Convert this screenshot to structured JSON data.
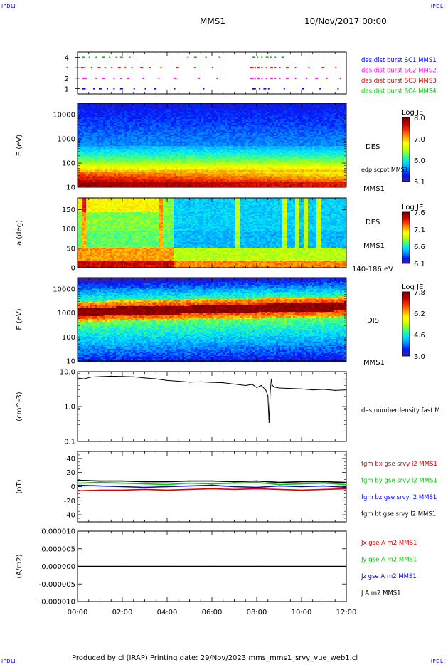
{
  "corners": {
    "tl": "IPDLI",
    "tr": "IPDLI",
    "bl": "IPDLI",
    "br": "IPDLI"
  },
  "header": {
    "title": "MMS1",
    "date": "10/Nov/2017 00:00"
  },
  "footer": {
    "text": "Produced by cl (IRAP)   Printing date: 29/Nov/2023   mms_mms1_srvy_vue_web1.cl"
  },
  "time_axis": {
    "start_hour": 0,
    "end_hour": 12,
    "ticks": [
      "00:00",
      "02:00",
      "04:00",
      "06:00",
      "08:00",
      "10:00",
      "12:00"
    ]
  },
  "colorbar_gradient": [
    "#3d1f99",
    "#0018ff",
    "#0090ff",
    "#00e0ff",
    "#40ff80",
    "#c0ff00",
    "#ffff00",
    "#ffa000",
    "#ff3000",
    "#c00000",
    "#7a0000"
  ],
  "chart_data": [
    {
      "type": "scatter",
      "name": "burst-panel",
      "ylim": [
        0.5,
        4.5
      ],
      "yticks": [
        "1",
        "2",
        "3",
        "4"
      ],
      "legend": [
        {
          "label": "des dist burst SC1 MMS1",
          "color": "#0000ff"
        },
        {
          "label": "des dist burst SC2 MMS2",
          "color": "#ff00ff"
        },
        {
          "label": "des dist burst SC3 MMS3",
          "color": "#dd0000"
        },
        {
          "label": "des dist burst SC4 MMS4",
          "color": "#00cc00"
        }
      ],
      "series": [
        {
          "y": 1,
          "color": "#0000ff",
          "x": [
            0.2,
            0.3,
            0.7,
            0.95,
            1.3,
            1.6,
            1.9,
            2.5,
            3.0,
            3.4,
            4.3,
            5.6,
            7.8,
            7.9,
            8.1,
            8.3,
            8.5,
            9.2,
            10.0,
            10.8,
            11.6
          ]
        },
        {
          "y": 2,
          "color": "#ff00ff",
          "x": [
            0.2,
            0.35,
            0.8,
            1.1,
            1.6,
            1.9,
            2.2,
            2.9,
            3.6,
            4.3,
            5.4,
            6.2,
            7.7,
            7.8,
            7.9,
            8.0,
            8.2,
            8.4,
            8.6,
            8.8,
            9.0,
            9.3,
            9.7,
            10.2,
            10.6,
            11.1,
            11.7
          ]
        },
        {
          "y": 3,
          "color": "#dd0000",
          "x": [
            0.15,
            0.3,
            0.6,
            0.9,
            1.2,
            1.5,
            1.8,
            2.1,
            2.4,
            2.8,
            3.2,
            3.7,
            4.4,
            5.2,
            6.0,
            7.7,
            7.8,
            7.9,
            8.0,
            8.2,
            8.4,
            8.6,
            8.8,
            9.0,
            9.3,
            9.7,
            10.3,
            10.9,
            11.5
          ]
        },
        {
          "y": 4,
          "color": "#00cc00",
          "x": [
            0.2,
            0.5,
            0.8,
            1.1,
            1.4,
            1.7,
            1.9,
            2.3,
            4.9,
            5.2,
            5.7,
            6.3,
            7.8,
            8.0,
            8.2,
            8.4,
            8.6,
            8.8,
            9.1
          ]
        }
      ]
    },
    {
      "type": "heatmap",
      "name": "des-energy-spectrogram",
      "ylabel": "E (eV)",
      "yscale": "log",
      "ylim": [
        10,
        30000
      ],
      "yticks": [
        "10",
        "100",
        "1000",
        "10000"
      ],
      "side_labels": [
        "DES",
        "edp scpot MMS1",
        "MMS1"
      ],
      "colorbar": {
        "title": "Log JE",
        "ticks": [
          "8.0",
          "7.0",
          "6.0",
          "5.1"
        ],
        "range": [
          5.1,
          8.1
        ]
      }
    },
    {
      "type": "heatmap",
      "name": "des-pitch-angle",
      "ylabel": "a (deg)",
      "ylim": [
        0,
        180
      ],
      "yticks": [
        "0",
        "50",
        "100",
        "150"
      ],
      "side_labels": [
        "DES",
        "MMS1",
        "140-186 eV"
      ],
      "colorbar": {
        "title": "Log JE",
        "ticks": [
          "7.6",
          "7.1",
          "6.6",
          "6.1"
        ],
        "range": [
          6.1,
          7.7
        ]
      }
    },
    {
      "type": "heatmap",
      "name": "dis-energy-spectrogram",
      "ylabel": "E (eV)",
      "yscale": "log",
      "ylim": [
        10,
        30000
      ],
      "yticks": [
        "10",
        "100",
        "1000",
        "10000"
      ],
      "side_labels": [
        "DIS",
        "MMS1"
      ],
      "colorbar": {
        "title": "Log JE",
        "ticks": [
          "7.8",
          "6.2",
          "4.6",
          "3.0"
        ],
        "range": [
          3.0,
          8.0
        ]
      }
    },
    {
      "type": "line",
      "name": "density",
      "ylabel": "(cm^-3)",
      "yscale": "log",
      "ylim": [
        0.1,
        10
      ],
      "yticks": [
        "0.1",
        "1.0",
        "10.0"
      ],
      "legend": [
        {
          "label": "des numberdensity fast M",
          "color": "#000000"
        }
      ],
      "x": [
        0.0,
        0.3,
        0.6,
        1.0,
        1.5,
        2.0,
        2.5,
        3.0,
        3.5,
        4.0,
        4.5,
        5.0,
        5.5,
        6.0,
        6.5,
        7.0,
        7.5,
        7.8,
        8.0,
        8.2,
        8.4,
        8.5,
        8.55,
        8.6,
        8.65,
        8.7,
        8.8,
        9.0,
        9.5,
        10.0,
        10.5,
        11.0,
        11.5,
        12.0
      ],
      "values": [
        6.5,
        6.2,
        7.0,
        7.2,
        7.4,
        7.3,
        7.1,
        6.6,
        6.2,
        5.6,
        5.3,
        5.0,
        5.1,
        4.9,
        4.8,
        4.4,
        4.0,
        4.3,
        3.5,
        4.0,
        3.0,
        2.0,
        0.35,
        2.5,
        6.0,
        4.0,
        3.6,
        3.4,
        3.3,
        3.2,
        3.0,
        3.1,
        2.9,
        3.0
      ]
    },
    {
      "type": "line",
      "name": "magnetic-field",
      "ylabel": "(nT)",
      "ylim": [
        -50,
        50
      ],
      "yticks": [
        "-40",
        "-20",
        "0",
        "20",
        "40"
      ],
      "legend": [
        {
          "label": "fgm bx gse srvy l2 MMS1",
          "color": "#dd0000"
        },
        {
          "label": "fgm by gse srvy l2 MMS1",
          "color": "#00cc00"
        },
        {
          "label": "fgm bz gse srvy l2 MMS1",
          "color": "#0000ff"
        },
        {
          "label": "fgm bt gse srvy l2 MMS1",
          "color": "#000000"
        }
      ],
      "x": [
        0,
        1,
        2,
        3,
        4,
        5,
        6,
        7,
        8,
        9,
        10,
        11,
        12
      ],
      "series": [
        {
          "color": "#dd0000",
          "values": [
            -6,
            -5,
            -5,
            -4,
            -5,
            -4,
            -3,
            -4,
            -3,
            -4,
            -5,
            -4,
            -3
          ]
        },
        {
          "color": "#00cc00",
          "values": [
            5,
            6,
            5,
            4,
            3,
            5,
            4,
            5,
            6,
            3,
            4,
            5,
            3
          ]
        },
        {
          "color": "#0000ff",
          "values": [
            2,
            1,
            0,
            -1,
            0,
            1,
            2,
            0,
            -1,
            1,
            0,
            1,
            -1
          ]
        },
        {
          "color": "#000000",
          "values": [
            9,
            8,
            8,
            7,
            7,
            8,
            8,
            7,
            8,
            6,
            7,
            7,
            6
          ]
        }
      ]
    },
    {
      "type": "line",
      "name": "current-density",
      "ylabel": "(A/m2)",
      "ylim": [
        -1e-05,
        1e-05
      ],
      "yticks": [
        "-0.000010",
        "-0.000005",
        "0.000000",
        "0.000005",
        "0.000010"
      ],
      "legend": [
        {
          "label": "Jx gse A m2 MMS1",
          "color": "#dd0000"
        },
        {
          "label": "Jy gse A m2 MMS1",
          "color": "#00cc00"
        },
        {
          "label": "Jz gse A m2 MMS1",
          "color": "#0000ff"
        },
        {
          "label": "J A m2 MMS1",
          "color": "#000000"
        }
      ],
      "x": [
        0,
        2,
        4,
        6,
        8,
        10,
        12
      ],
      "values": [
        0,
        0,
        0,
        0,
        0,
        0,
        0
      ]
    }
  ]
}
